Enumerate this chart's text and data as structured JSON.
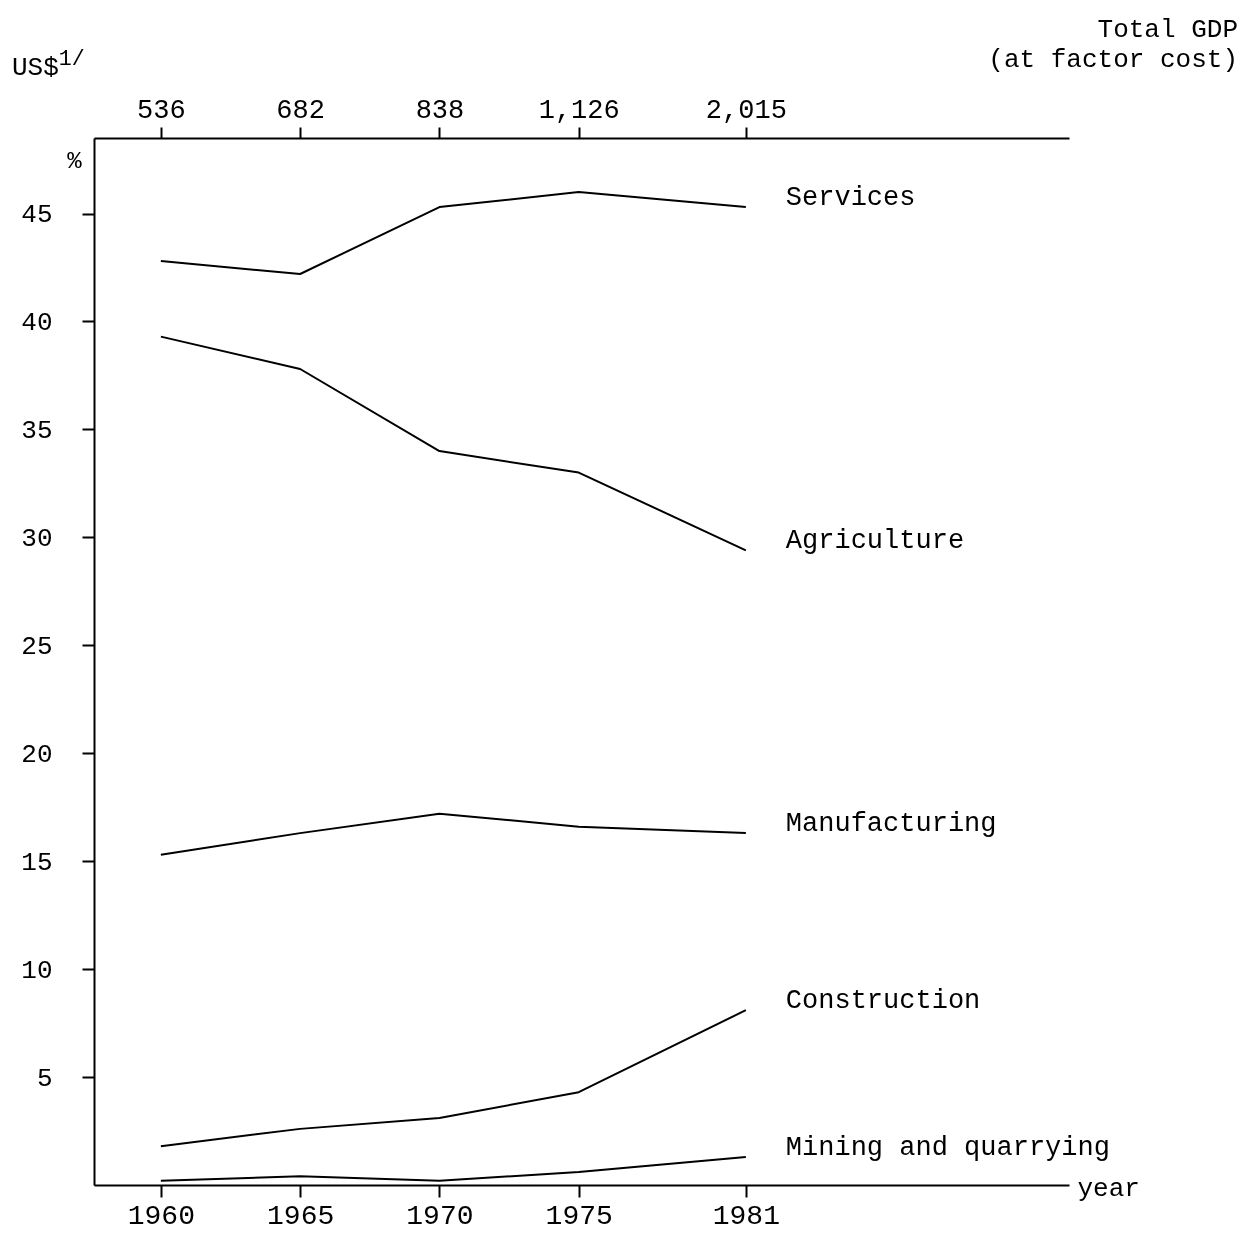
{
  "chart_data": {
    "type": "line",
    "xlabel": "year",
    "ylabel": "%",
    "annotations": [
      "US$$^{1/}$",
      "Total GDP\n(at factor cost)",
      "536",
      "682",
      "838",
      "1,126",
      "2,015"
    ],
    "x": [
      1960,
      1965,
      1970,
      1975,
      1981
    ],
    "xlim": [
      1957.6,
      1992.6
    ],
    "xticks": [
      1960,
      1965,
      1970,
      1975,
      1981
    ],
    "ylim": [
      0,
      48.5
    ],
    "yticks": [
      5,
      10,
      15,
      20,
      25,
      30,
      35,
      40,
      45
    ],
    "series": [
      {
        "name": "Services",
        "color": "#000000",
        "values": [
          42.8,
          42.2,
          45.3,
          46.0,
          45.3
        ]
      },
      {
        "name": "Agriculture",
        "color": "#000000",
        "values": [
          39.3,
          37.8,
          34.0,
          33.0,
          29.4
        ]
      },
      {
        "name": "Manufacturing",
        "color": "#000000",
        "values": [
          15.3,
          16.3,
          17.2,
          16.6,
          16.3
        ]
      },
      {
        "name": "Construction",
        "color": "#000000",
        "values": [
          1.8,
          2.6,
          3.1,
          4.3,
          8.1
        ]
      },
      {
        "name": "Mining and quarrying",
        "color": "#000000",
        "values": [
          0.2,
          0.4,
          0.2,
          0.6,
          1.3
        ]
      }
    ],
    "grid": false,
    "legend": false,
    "marker": "none",
    "line_style": "solid"
  }
}
